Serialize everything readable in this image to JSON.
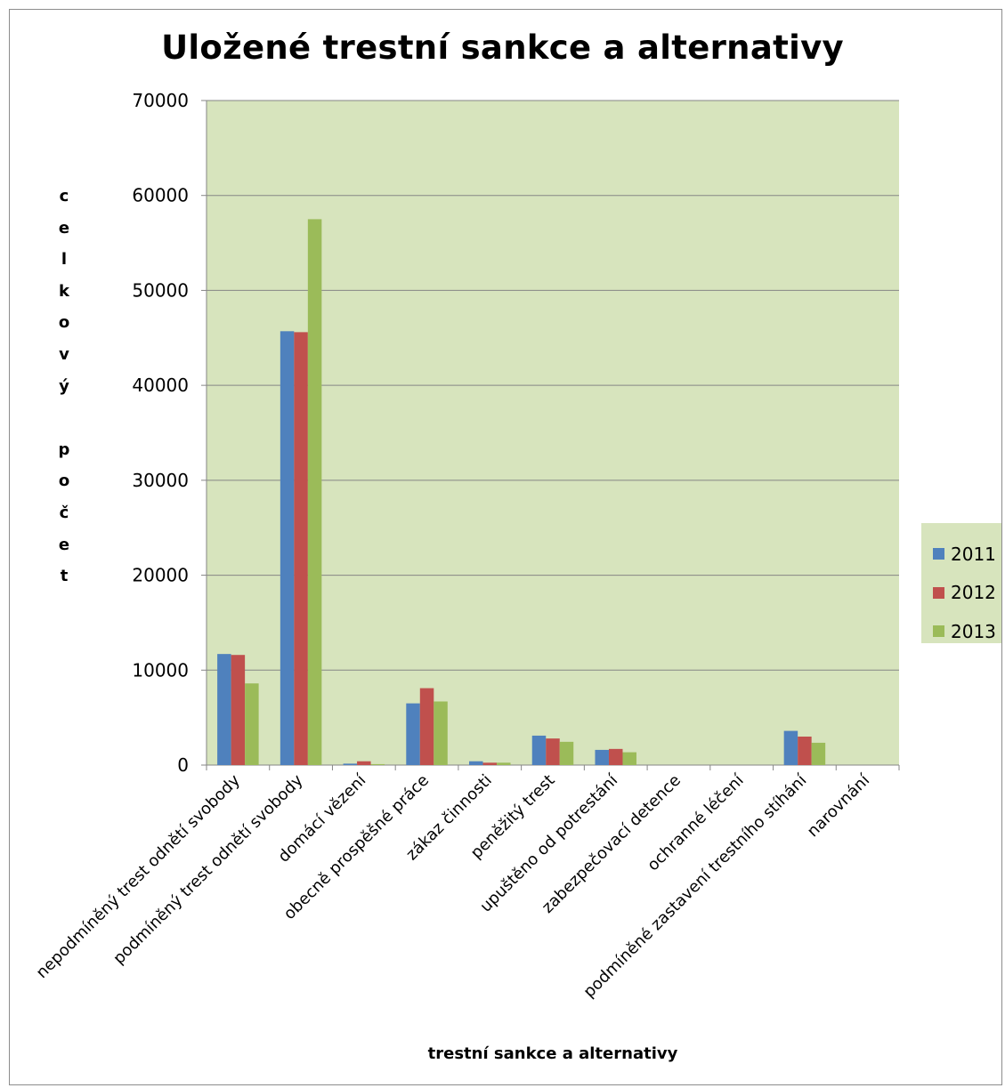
{
  "chart_data": {
    "type": "bar",
    "title": "Uložené trestní sankce a alternativy",
    "xlabel": "trestní sankce a alternativy",
    "ylabel": "c\ne\nl\nk\no\nv\ný\n\np\no\nč\ne\nt",
    "ylim": [
      0,
      70000
    ],
    "yticks": [
      0,
      10000,
      20000,
      30000,
      40000,
      50000,
      60000,
      70000
    ],
    "grid": true,
    "legend_position": "right",
    "categories": [
      "nepodmíněný trest odnětí svobody",
      "podmíněný trest odnětí svobody",
      "domácí vězení",
      "obecně prospěšné práce",
      "zákaz činnosti",
      "peněžitý trest",
      "upuštěno od potrestání",
      "zabezpečovací detence",
      "ochranné léčení",
      "podmíněné zastavení trestního stíhání",
      "narovnání"
    ],
    "series": [
      {
        "name": "2011",
        "color": "#4f81bd",
        "values": [
          11700,
          45700,
          150,
          6500,
          400,
          3100,
          1600,
          0,
          0,
          3600,
          0
        ]
      },
      {
        "name": "2012",
        "color": "#c0504d",
        "values": [
          11600,
          45600,
          400,
          8100,
          250,
          2800,
          1700,
          0,
          0,
          3000,
          0
        ]
      },
      {
        "name": "2013",
        "color": "#9bbb59",
        "values": [
          8600,
          57500,
          100,
          6700,
          250,
          2450,
          1350,
          0,
          0,
          2350,
          0
        ]
      }
    ],
    "plot_background": "#d7e4bd"
  }
}
